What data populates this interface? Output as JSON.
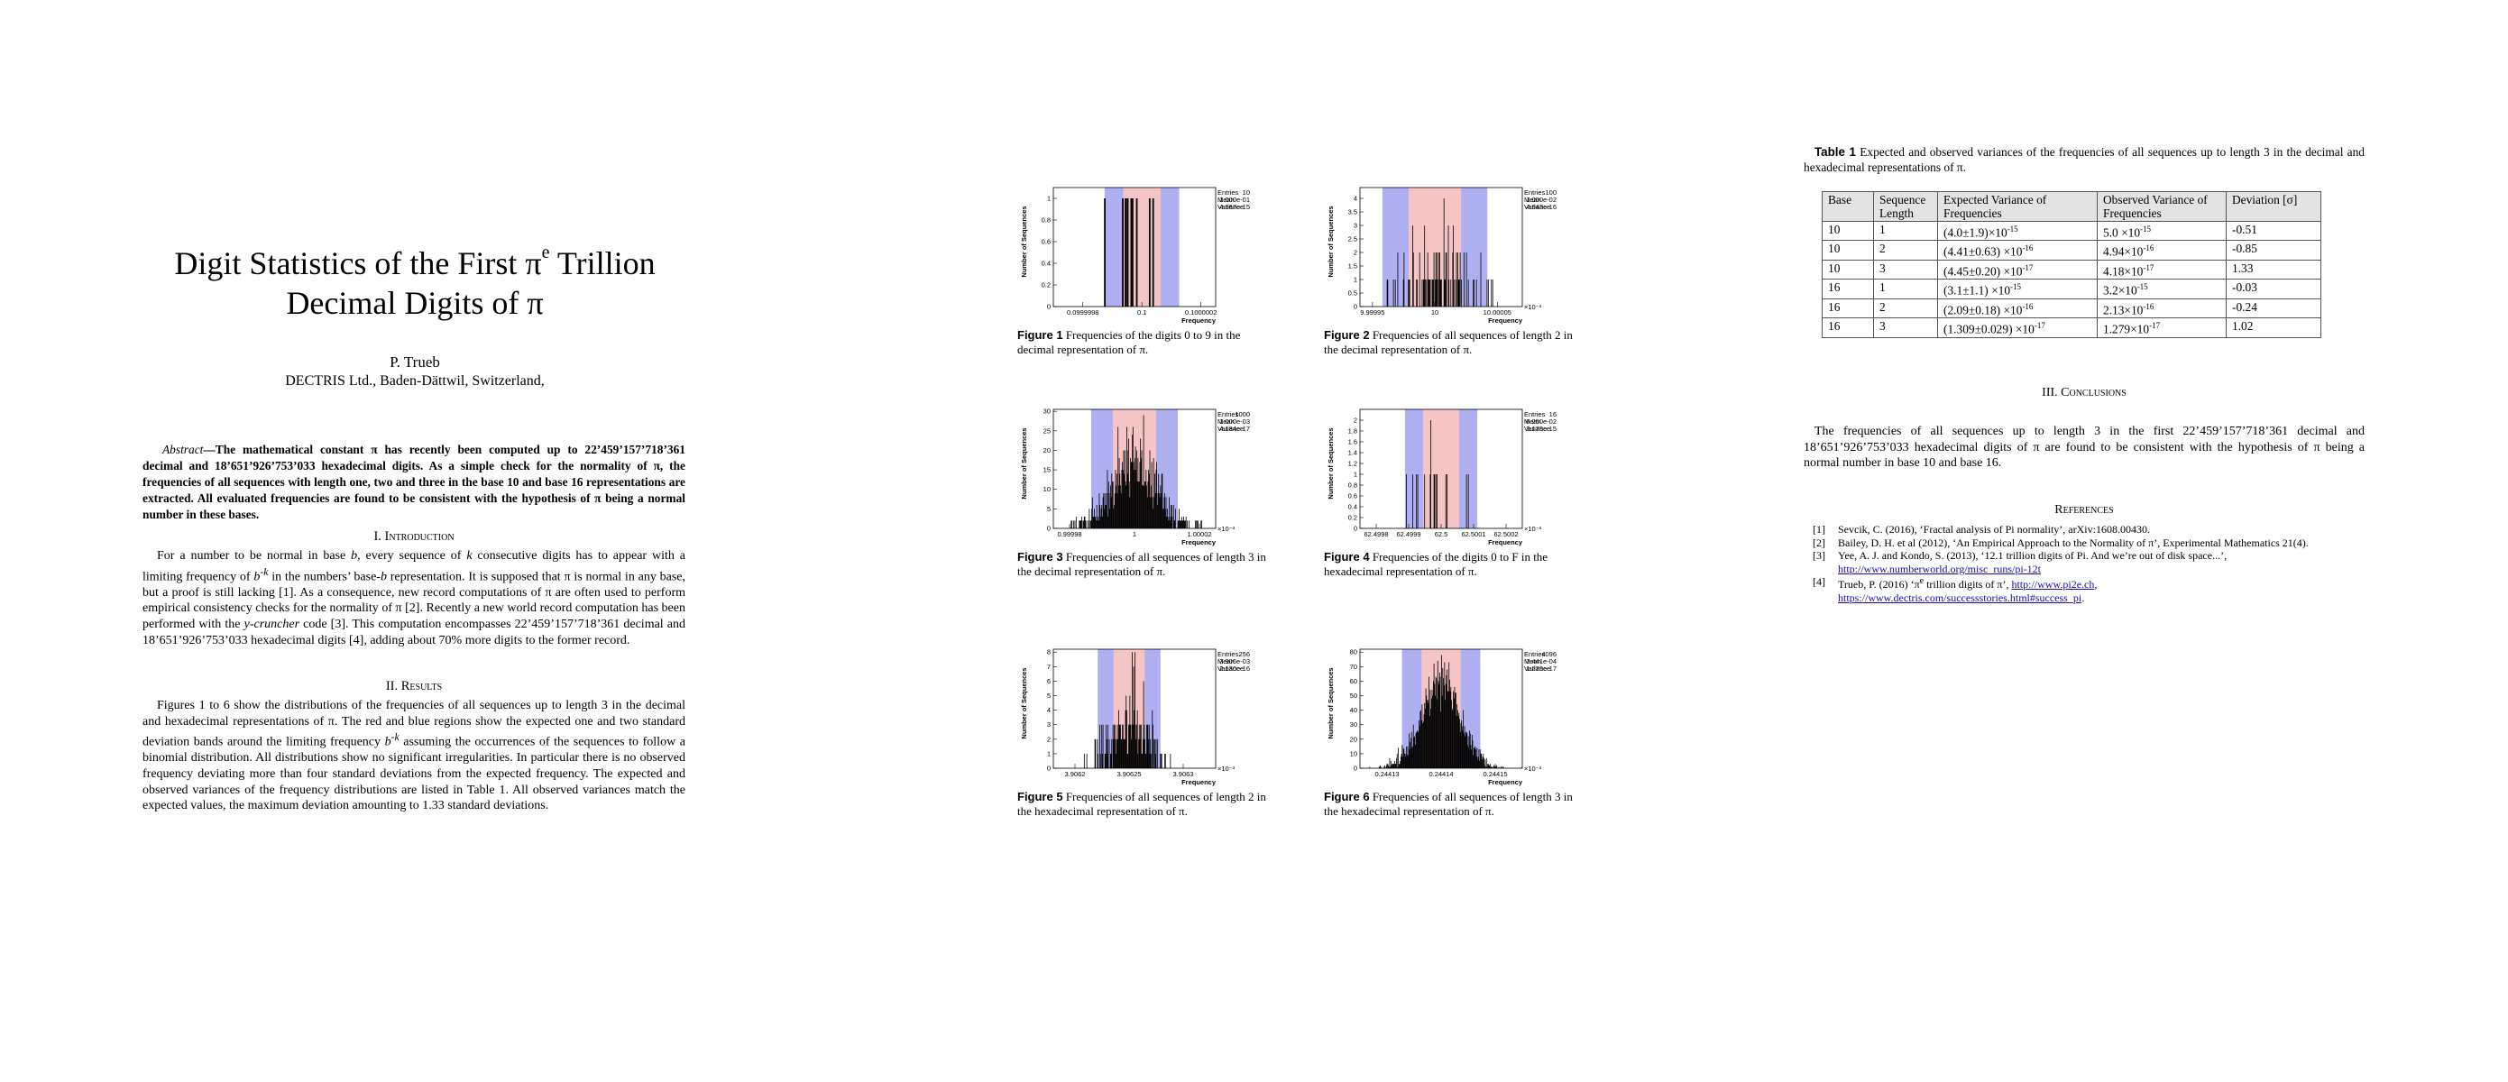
{
  "paper": {
    "title_part1": "Digit Statistics of the First π",
    "title_sup": "e",
    "title_part2": " Trillion",
    "title_line2": "Decimal Digits of π",
    "author": "P. Trueb",
    "affiliation": "DECTRIS Ltd., Baden-Dättwil, Switzerland,",
    "abstract_lead": "Abstract",
    "abstract_text": "—The mathematical constant π has recently been computed up to 22’459’157’718’361 decimal and 18’651’926’753’033 hexadecimal digits. As a simple check for the normality of π, the frequencies of all sequences with length one, two and three in the base 10 and base 16 representations are extracted. All evaluated frequencies are found to be consistent with the hypothesis of π being a normal number in these bases.",
    "sections": {
      "intro_heading": "I.  Introduction",
      "intro_t1": "For a number to be normal in base ",
      "intro_b": "b",
      "intro_t2": ", every sequence of ",
      "intro_k": "k",
      "intro_t3": " consecutive digits has to appear with a limiting frequency of ",
      "intro_bk_base": "b",
      "intro_bk_exp": "-k",
      "intro_t4": " in the numbers’ base-",
      "intro_b2": "b",
      "intro_t5": " representation. It is supposed that π is normal in any base, but a proof is still lacking [1]. As a consequence, new record computations of π are often used to perform empirical consistency checks for the normality of π [2]. Recently a new world record computation has been performed with the ",
      "intro_ycruncher": "y-cruncher",
      "intro_t6": " code [3]. This computation encompasses 22’459’157’718’361 decimal and 18’651’926’753’033 hexadecimal digits [4], adding about 70% more digits to the former record.",
      "results_heading": "II.  Results",
      "results_t1": "Figures 1 to 6 show the distributions of the frequencies of all sequences up to length 3 in the decimal and hexadecimal representations of π. The red and blue regions show the expected one and two standard deviation bands around the limiting frequency ",
      "results_bk_base": "b",
      "results_bk_exp": "-k",
      "results_t2": " assuming the occurrences of the sequences to follow a binomial distribution. All distributions show no significant irregularities. In particular there is no observed frequency deviating more than four standard deviations from the expected frequency. The expected and observed variances of the frequency distributions are listed in Table 1. All observed variances match the expected values, the maximum deviation amounting to 1.33 standard deviations.",
      "conclusions_heading": "III.  Conclusions",
      "conclusions_text": "The frequencies of all sequences up to length 3 in the first 22’459’157’718’361 decimal and 18’651’926’753’033 hexadecimal digits of π are found to be consistent with the hypothesis of π being a normal number in base 10 and base 16.",
      "references_heading": "References"
    },
    "references": [
      {
        "num": "[1]",
        "text": "Sevcik, C. (2016), ‘Fractal analysis of Pi normality’, arXiv:1608.00430.",
        "link": ""
      },
      {
        "num": "[2]",
        "text": "Bailey, D. H. et al (2012), ‘An Empirical Approach to the Normality of π’, Experimental Mathematics 21(4).",
        "link": ""
      },
      {
        "num": "[3]",
        "text": "Yee, A. J. and Kondo, S. (2013), ‘12.1 trillion digits of Pi. And we’re out of disk space...’,",
        "link": "http://www.numberworld.org/misc_runs/pi-12t"
      },
      {
        "num": "[4]",
        "text": "Trueb, P. (2016) ‘π",
        "text_sup": "e",
        "text_after": " trillion digits of  π’, ",
        "link": "http://www.pi2e.ch",
        "link2": "https://www.dectris.com/successstories.html#success_pi"
      }
    ],
    "table": {
      "caption_label": "Table 1",
      "caption_text": " Expected and observed variances of the frequencies of all sequences up to length 3 in the decimal and hexadecimal representations of π.",
      "headers": [
        "Base",
        "Sequence Length",
        "Expected Variance of Frequencies",
        "Observed Variance of Frequencies",
        "Deviation [σ]"
      ],
      "rows": [
        {
          "base": "10",
          "len": "1",
          "exp_m": "(4.0±1.9)×10",
          "exp_e": "-15",
          "obs_m": "5.0 ×10",
          "obs_e": "-15",
          "dev": "-0.51"
        },
        {
          "base": "10",
          "len": "2",
          "exp_m": "(4.41±0.63) ×10",
          "exp_e": "-16",
          "obs_m": "4.94×10",
          "obs_e": "-16",
          "dev": "-0.85"
        },
        {
          "base": "10",
          "len": "3",
          "exp_m": "(4.45±0.20) ×10",
          "exp_e": "-17",
          "obs_m": "4.18×10",
          "obs_e": "-17",
          "dev": " 1.33"
        },
        {
          "base": "16",
          "len": "1",
          "exp_m": "(3.1±1.1) ×10",
          "exp_e": "-15",
          "obs_m": "3.2×10",
          "obs_e": "-15",
          "dev": "-0.03"
        },
        {
          "base": "16",
          "len": "2",
          "exp_m": "(2.09±0.18) ×10",
          "exp_e": "-16",
          "obs_m": "2.13×10",
          "obs_e": "-16",
          "dev": "-0.24"
        },
        {
          "base": "16",
          "len": "3",
          "exp_m": "(1.309±0.029) ×10",
          "exp_e": "-17",
          "obs_m": "1.279×10",
          "obs_e": "-17",
          "dev": " 1.02"
        }
      ]
    }
  },
  "figures": [
    {
      "label": "Figure 1",
      "caption": " Frequencies of the digits 0 to 9 in the decimal representation of π."
    },
    {
      "label": "Figure 2",
      "caption": " Frequencies of all sequences of length 2 in the decimal representation of π."
    },
    {
      "label": "Figure 3",
      "caption": " Frequencies of all sequences of length 3 in the decimal representation of π."
    },
    {
      "label": "Figure 4",
      "caption": " Frequencies of the digits 0 to F in the hexadecimal representation of π."
    },
    {
      "label": "Figure 5",
      "caption": " Frequencies of all sequences of length 2 in the hexadecimal representation of π."
    },
    {
      "label": "Figure 6",
      "caption": " Frequencies of all sequences of length 3 in the hexadecimal representation of π."
    }
  ],
  "chart_data": [
    {
      "type": "bar",
      "ylabel": "Number of Sequences",
      "xlabel": "Frequency",
      "stats": {
        "entries": "10",
        "mean": "1.000e-01",
        "variance": "4.967e-15"
      },
      "xticks": [
        {
          "v": 0.0999998,
          "label": "0.0999998"
        },
        {
          "v": 0.1,
          "label": "0.1"
        },
        {
          "v": 0.1000002,
          "label": "0.1000002"
        }
      ],
      "xlim": [
        0.0999997,
        0.10000025
      ],
      "ylim": [
        0,
        1.1
      ],
      "yticks": [
        0,
        0.2,
        0.4,
        0.6,
        0.8,
        1
      ],
      "mean_val": 0.1,
      "sigma": 6.32e-08,
      "distribution": "uniform-single",
      "n": 10,
      "seed": 11,
      "x_exp": ""
    },
    {
      "type": "bar",
      "ylabel": "Number of Sequences",
      "xlabel": "Frequency",
      "stats": {
        "entries": "100",
        "mean": "1.000e-02",
        "variance": "4.943e-16"
      },
      "xticks": [
        {
          "v": 9.99995,
          "label": "9.99995"
        },
        {
          "v": 10,
          "label": "10"
        },
        {
          "v": 10.00005,
          "label": "10.00005"
        }
      ],
      "xlim": [
        9.99994,
        10.00007
      ],
      "ylim": [
        0,
        4.4
      ],
      "yticks": [
        0,
        0.5,
        1,
        1.5,
        2,
        2.5,
        3,
        3.5,
        4
      ],
      "mean_val": 10,
      "sigma": 2.1e-05,
      "distribution": "binned",
      "n": 100,
      "seed": 23,
      "x_exp": "10⁻³"
    },
    {
      "type": "bar",
      "ylabel": "Number of Sequences",
      "xlabel": "Frequency",
      "stats": {
        "entries": "1000",
        "mean": "1.000e-03",
        "variance": "4.184e-17"
      },
      "xticks": [
        {
          "v": 0.99998,
          "label": "0.99998"
        },
        {
          "v": 1,
          "label": "1"
        },
        {
          "v": 1.00002,
          "label": "1.00002"
        }
      ],
      "xlim": [
        0.999975,
        1.000025
      ],
      "ylim": [
        0,
        30.5
      ],
      "yticks": [
        0,
        5,
        10,
        15,
        20,
        25,
        30
      ],
      "mean_val": 1,
      "sigma": 6.67e-06,
      "distribution": "binned",
      "n": 1000,
      "seed": 37,
      "x_exp": "10⁻³"
    },
    {
      "type": "bar",
      "ylabel": "Number of Sequences",
      "xlabel": "Frequency",
      "stats": {
        "entries": "16",
        "mean": "6.250e-02",
        "variance": "3.179e-15"
      },
      "xticks": [
        {
          "v": 62.4998,
          "label": "62.4998"
        },
        {
          "v": 62.4999,
          "label": "62.4999"
        },
        {
          "v": 62.5,
          "label": "62.5"
        },
        {
          "v": 62.5001,
          "label": "62.5001"
        },
        {
          "v": 62.5002,
          "label": "62.5002"
        }
      ],
      "xlim": [
        62.49975,
        62.50025
      ],
      "ylim": [
        0,
        2.2
      ],
      "yticks": [
        0,
        0.2,
        0.4,
        0.6,
        0.8,
        1,
        1.2,
        1.4,
        1.6,
        1.8,
        2
      ],
      "mean_val": 62.5,
      "sigma": 5.57e-05,
      "distribution": "binned",
      "n": 16,
      "seed": 41,
      "x_exp": "10⁻³"
    },
    {
      "type": "bar",
      "ylabel": "Number of Sequences",
      "xlabel": "Frequency",
      "stats": {
        "entries": "256",
        "mean": "3.906e-03",
        "variance": "2.130e-16"
      },
      "xticks": [
        {
          "v": 3.9062,
          "label": "3.9062"
        },
        {
          "v": 3.90625,
          "label": "3.90625"
        },
        {
          "v": 3.9063,
          "label": "3.9063"
        }
      ],
      "xlim": [
        3.90618,
        3.90633
      ],
      "ylim": [
        0,
        8.2
      ],
      "yticks": [
        0,
        1,
        2,
        3,
        4,
        5,
        6,
        7,
        8
      ],
      "mean_val": 3.90625,
      "sigma": 1.45e-05,
      "distribution": "binned",
      "n": 256,
      "seed": 53,
      "x_exp": "10⁻³"
    },
    {
      "type": "bar",
      "ylabel": "Number of Sequences",
      "xlabel": "Frequency",
      "stats": {
        "entries": "4096",
        "mean": "2.441e-04",
        "variance": "1.279e-17"
      },
      "xticks": [
        {
          "v": 0.24413,
          "label": "0.24413"
        },
        {
          "v": 0.24414,
          "label": "0.24414"
        },
        {
          "v": 0.24415,
          "label": "0.24415"
        }
      ],
      "xlim": [
        0.244125,
        0.244155
      ],
      "ylim": [
        0,
        82
      ],
      "yticks": [
        0,
        10,
        20,
        30,
        40,
        50,
        60,
        70,
        80
      ],
      "mean_val": 0.24414,
      "sigma": 3.62e-06,
      "distribution": "binned",
      "n": 4096,
      "seed": 67,
      "x_exp": "10⁻³"
    }
  ]
}
